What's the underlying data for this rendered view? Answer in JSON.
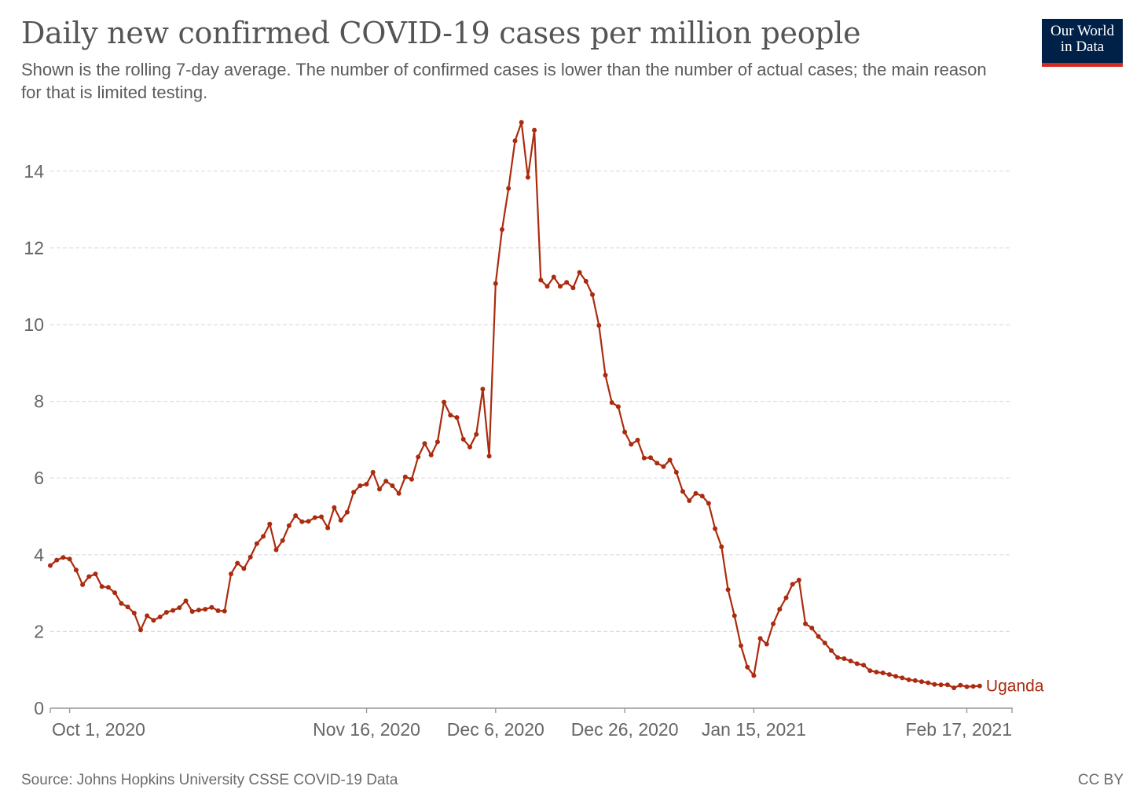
{
  "title": "Daily new confirmed COVID-19 cases per million people",
  "subtitle": "Shown is the rolling 7-day average. The number of confirmed cases is lower than the number of actual cases; the main reason for that is limited testing.",
  "logo": {
    "line1": "Our World",
    "line2": "in Data",
    "bg_color": "#002147",
    "accent_color": "#d42b21"
  },
  "footer": {
    "source": "Source: Johns Hopkins University CSSE COVID-19 Data",
    "license": "CC BY"
  },
  "chart_data": {
    "type": "line",
    "title": "Daily new confirmed COVID-19 cases per million people",
    "xlabel": "",
    "ylabel": "",
    "ylim": [
      0,
      15
    ],
    "yticks": [
      0,
      2,
      4,
      6,
      8,
      10,
      12,
      14
    ],
    "x_start": "2020-09-28",
    "x_end": "2021-02-24",
    "xticks": [
      {
        "date": "2020-10-01",
        "label": "Oct 1, 2020"
      },
      {
        "date": "2020-11-16",
        "label": "Nov 16, 2020"
      },
      {
        "date": "2020-12-06",
        "label": "Dec 6, 2020"
      },
      {
        "date": "2020-12-26",
        "label": "Dec 26, 2020"
      },
      {
        "date": "2021-01-15",
        "label": "Jan 15, 2021"
      },
      {
        "date": "2021-02-17",
        "label": "Feb 17, 2021"
      }
    ],
    "grid": true,
    "series": [
      {
        "name": "Uganda",
        "color": "#ab2b0e",
        "values": [
          3.72,
          3.86,
          3.93,
          3.89,
          3.6,
          3.22,
          3.43,
          3.5,
          3.17,
          3.15,
          3.01,
          2.73,
          2.64,
          2.48,
          2.04,
          2.41,
          2.29,
          2.38,
          2.5,
          2.55,
          2.62,
          2.8,
          2.52,
          2.56,
          2.58,
          2.63,
          2.54,
          2.53,
          3.5,
          3.78,
          3.64,
          3.94,
          4.29,
          4.48,
          4.8,
          4.13,
          4.37,
          4.76,
          5.02,
          4.86,
          4.87,
          4.97,
          4.99,
          4.7,
          5.23,
          4.9,
          5.11,
          5.63,
          5.8,
          5.84,
          6.15,
          5.71,
          5.92,
          5.8,
          5.6,
          6.03,
          5.97,
          6.55,
          6.9,
          6.6,
          6.94,
          7.98,
          7.64,
          7.58,
          7.01,
          6.81,
          7.14,
          8.32,
          6.57,
          11.07,
          12.48,
          13.55,
          14.79,
          15.27,
          13.84,
          15.07,
          11.16,
          11.0,
          11.24,
          11.0,
          11.1,
          10.96,
          11.36,
          11.13,
          10.78,
          9.98,
          8.68,
          7.97,
          7.86,
          7.2,
          6.88,
          6.99,
          6.52,
          6.53,
          6.39,
          6.3,
          6.47,
          6.15,
          5.65,
          5.41,
          5.6,
          5.53,
          5.34,
          4.68,
          4.21,
          3.09,
          2.41,
          1.63,
          1.07,
          0.85,
          1.82,
          1.67,
          2.2,
          2.58,
          2.88,
          3.23,
          3.34,
          2.2,
          2.09,
          1.87,
          1.7,
          1.5,
          1.32,
          1.29,
          1.23,
          1.16,
          1.12,
          0.98,
          0.94,
          0.92,
          0.88,
          0.83,
          0.79,
          0.74,
          0.72,
          0.69,
          0.66,
          0.62,
          0.61,
          0.61,
          0.53,
          0.6,
          0.56,
          0.57,
          0.58
        ]
      }
    ]
  }
}
